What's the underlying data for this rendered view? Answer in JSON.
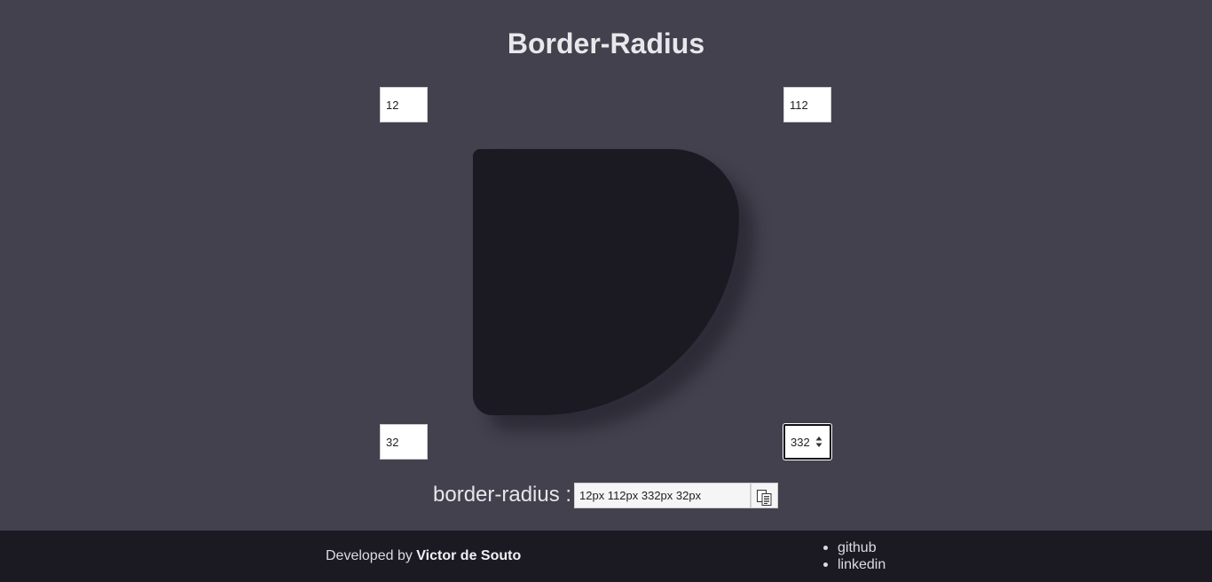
{
  "header": {
    "title": "Border-Radius"
  },
  "corners": {
    "top_left": "12",
    "top_right": "112",
    "bottom_left": "32",
    "bottom_right": "332"
  },
  "result": {
    "label": "border-radius :",
    "value": "12px 112px 332px 32px",
    "copy_icon": "copy-icon"
  },
  "footer": {
    "developed_by": "Developed by ",
    "author": "Victor de Souto",
    "links": [
      "github",
      "linkedin"
    ]
  },
  "colors": {
    "background": "#42414d",
    "preview_box": "#1b1922",
    "footer": "#1b1922"
  }
}
